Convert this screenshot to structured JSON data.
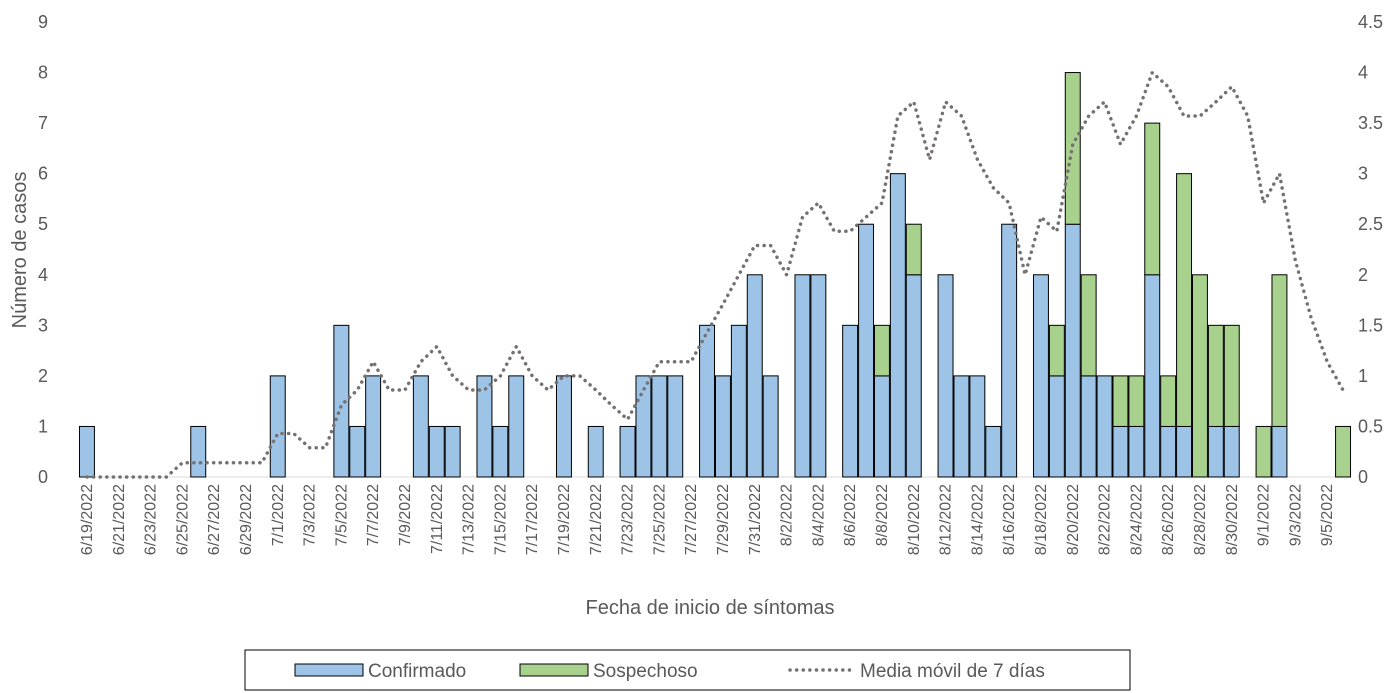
{
  "chart_data": {
    "type": "bar",
    "stacked": true,
    "x_label": "Fecha de inicio de síntomas",
    "y_label": "Número de casos",
    "categories": [
      "6/19/2022",
      null,
      "6/21/2022",
      null,
      "6/23/2022",
      null,
      "6/25/2022",
      null,
      "6/27/2022",
      null,
      "6/29/2022",
      null,
      "7/1/2022",
      null,
      "7/3/2022",
      null,
      "7/5/2022",
      null,
      "7/7/2022",
      null,
      "7/9/2022",
      null,
      "7/11/2022",
      null,
      "7/13/2022",
      null,
      "7/15/2022",
      null,
      "7/17/2022",
      null,
      "7/19/2022",
      null,
      "7/21/2022",
      null,
      "7/23/2022",
      null,
      "7/25/2022",
      null,
      "7/27/2022",
      null,
      "7/29/2022",
      null,
      "7/31/2022",
      null,
      "8/2/2022",
      null,
      "8/4/2022",
      null,
      "8/6/2022",
      null,
      "8/8/2022",
      null,
      "8/10/2022",
      null,
      "8/12/2022",
      null,
      "8/14/2022",
      null,
      "8/16/2022",
      null,
      "8/18/2022",
      null,
      "8/20/2022",
      null,
      "8/22/2022",
      null,
      "8/24/2022",
      null,
      "8/26/2022",
      null,
      "8/28/2022",
      null,
      "8/30/2022",
      null,
      "9/1/2022",
      null,
      "9/3/2022",
      null,
      "9/5/2022",
      null
    ],
    "series": [
      {
        "name": "Confirmado",
        "color": "#9dc3e6",
        "values": [
          1,
          0,
          0,
          0,
          0,
          0,
          0,
          1,
          0,
          0,
          0,
          0,
          2,
          0,
          0,
          0,
          3,
          1,
          2,
          0,
          0,
          2,
          1,
          1,
          0,
          2,
          1,
          2,
          0,
          0,
          2,
          0,
          1,
          0,
          1,
          2,
          2,
          2,
          0,
          3,
          2,
          3,
          4,
          2,
          0,
          4,
          4,
          0,
          3,
          5,
          2,
          6,
          4,
          0,
          4,
          2,
          2,
          1,
          5,
          0,
          4,
          2,
          5,
          2,
          2,
          1,
          1,
          4,
          1,
          1,
          0,
          1,
          1,
          0,
          0,
          1,
          0,
          0,
          0,
          0
        ]
      },
      {
        "name": "Sospechoso",
        "color": "#a9d18e",
        "values": [
          0,
          0,
          0,
          0,
          0,
          0,
          0,
          0,
          0,
          0,
          0,
          0,
          0,
          0,
          0,
          0,
          0,
          0,
          0,
          0,
          0,
          0,
          0,
          0,
          0,
          0,
          0,
          0,
          0,
          0,
          0,
          0,
          0,
          0,
          0,
          0,
          0,
          0,
          0,
          0,
          0,
          0,
          0,
          0,
          0,
          0,
          0,
          0,
          0,
          0,
          1,
          0,
          1,
          0,
          0,
          0,
          0,
          0,
          0,
          0,
          0,
          1,
          3,
          2,
          0,
          1,
          1,
          3,
          1,
          5,
          4,
          2,
          2,
          0,
          1,
          3,
          0,
          0,
          0,
          1
        ]
      },
      {
        "name": "Media móvil de 7 días",
        "type": "line",
        "dash": "dotted",
        "axis": "y2",
        "color": "#767171",
        "values": [
          0,
          0,
          0,
          0,
          0,
          0,
          0.14,
          0.14,
          0.14,
          0.14,
          0.14,
          0.14,
          0.43,
          0.43,
          0.29,
          0.29,
          0.71,
          0.86,
          1.14,
          0.86,
          0.86,
          1.14,
          1.29,
          1,
          0.86,
          0.86,
          1,
          1.29,
          1,
          0.86,
          1,
          1,
          0.86,
          0.71,
          0.57,
          0.86,
          1.14,
          1.14,
          1.14,
          1.43,
          1.71,
          2,
          2.29,
          2.29,
          2,
          2.57,
          2.71,
          2.43,
          2.43,
          2.57,
          2.71,
          3.57,
          3.71,
          3.14,
          3.71,
          3.57,
          3.14,
          2.86,
          2.71,
          2,
          2.57,
          2.43,
          3.29,
          3.57,
          3.71,
          3.29,
          3.57,
          4,
          3.86,
          3.57,
          3.57,
          3.71,
          3.86,
          3.57,
          2.71,
          3,
          2.14,
          1.57,
          1.14,
          0.86
        ]
      }
    ],
    "ylim": [
      0,
      9
    ],
    "yticks": [
      0,
      1,
      2,
      3,
      4,
      5,
      6,
      7,
      8,
      9
    ],
    "y2lim": [
      0,
      4.5
    ],
    "y2ticks": [
      0,
      0.5,
      1,
      1.5,
      2,
      2.5,
      3,
      3.5,
      4,
      4.5
    ],
    "grid": false,
    "legend": "bottom"
  }
}
